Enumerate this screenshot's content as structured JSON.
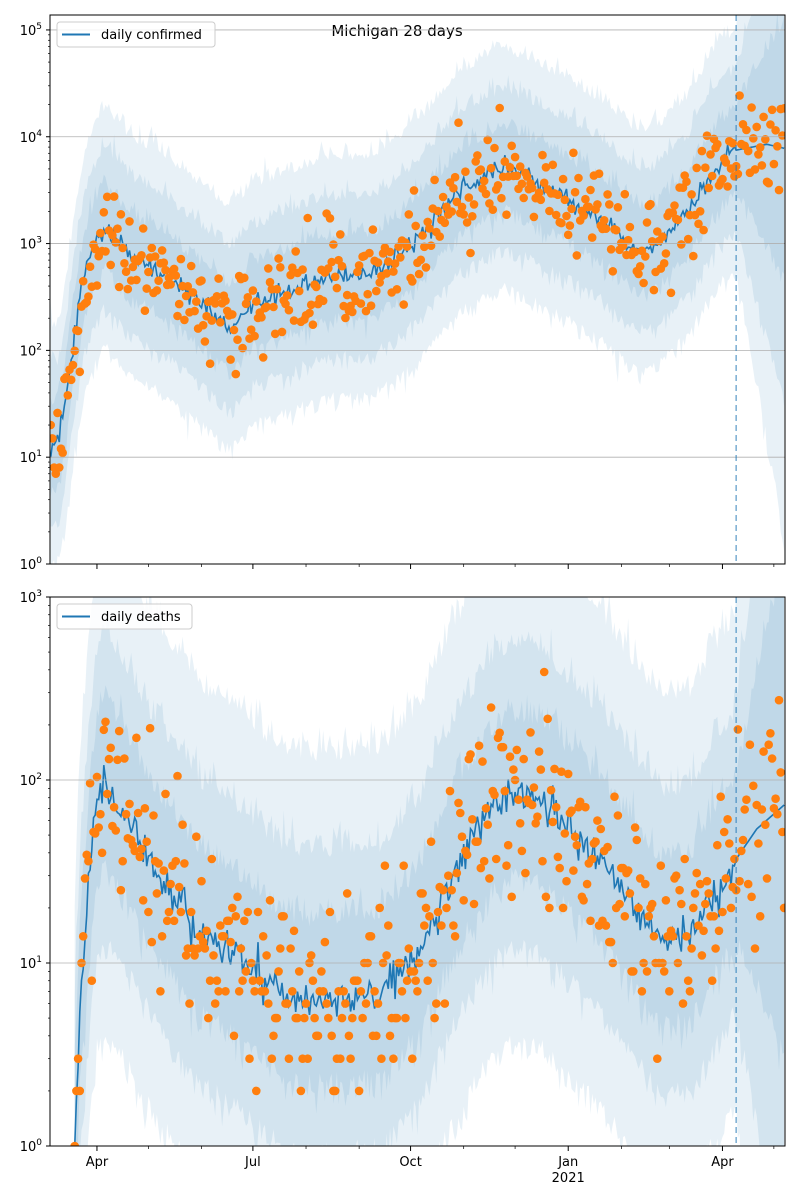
{
  "chart_data": [
    {
      "type": "line",
      "title": "Michigan 28 days",
      "scale": "log",
      "ylim": [
        1,
        138000
      ],
      "xlim_days_from_2020_04_01": [
        -27.4,
        401.5
      ],
      "legend": {
        "label": "daily confirmed",
        "placement": "top-left"
      },
      "grid": "major y",
      "y_ticks": [
        {
          "base": "10",
          "exp": "0",
          "value": 1
        },
        {
          "base": "10",
          "exp": "1",
          "value": 10
        },
        {
          "base": "10",
          "exp": "2",
          "value": 100
        },
        {
          "base": "10",
          "exp": "3",
          "value": 1000
        },
        {
          "base": "10",
          "exp": "4",
          "value": 10000
        },
        {
          "base": "10",
          "exp": "5",
          "value": 100000
        }
      ],
      "forecast_start_day": 373,
      "median": [
        [
          -27,
          12
        ],
        [
          -22,
          15
        ],
        [
          -18,
          35
        ],
        [
          -13,
          150
        ],
        [
          -7,
          550
        ],
        [
          0,
          1100
        ],
        [
          5,
          1500
        ],
        [
          19,
          780
        ],
        [
          37,
          550
        ],
        [
          60,
          280
        ],
        [
          78,
          160
        ],
        [
          89,
          260
        ],
        [
          111,
          360
        ],
        [
          136,
          500
        ],
        [
          159,
          500
        ],
        [
          177,
          750
        ],
        [
          195,
          1500
        ],
        [
          212,
          3200
        ],
        [
          230,
          4500
        ],
        [
          238,
          5200
        ],
        [
          253,
          4000
        ],
        [
          270,
          2900
        ],
        [
          294,
          1700
        ],
        [
          315,
          880
        ],
        [
          327,
          970
        ],
        [
          345,
          1900
        ],
        [
          362,
          5500
        ],
        [
          373,
          7500
        ],
        [
          391,
          8500
        ],
        [
          401,
          7800
        ]
      ],
      "band_factors": [
        2.2,
        5,
        12
      ],
      "observed_noise_log10": 0.22,
      "observed_end_day": 401
    },
    {
      "type": "line",
      "title": "",
      "scale": "log",
      "ylim": [
        1,
        1000
      ],
      "xlim_days_from_2020_04_01": [
        -27.4,
        401.5
      ],
      "legend": {
        "label": "daily deaths",
        "placement": "top-left"
      },
      "grid": "major y",
      "y_ticks": [
        {
          "base": "10",
          "exp": "0",
          "value": 1
        },
        {
          "base": "10",
          "exp": "1",
          "value": 10
        },
        {
          "base": "10",
          "exp": "2",
          "value": 100
        },
        {
          "base": "10",
          "exp": "3",
          "value": 1000
        }
      ],
      "forecast_start_day": 373,
      "median": [
        [
          -13,
          1
        ],
        [
          -10,
          6
        ],
        [
          -4,
          32
        ],
        [
          0,
          78
        ],
        [
          5,
          95
        ],
        [
          19,
          60
        ],
        [
          31,
          36
        ],
        [
          43,
          25
        ],
        [
          60,
          15
        ],
        [
          78,
          12
        ],
        [
          95,
          8.6
        ],
        [
          113,
          6.3
        ],
        [
          136,
          6.3
        ],
        [
          165,
          6.7
        ],
        [
          177,
          9
        ],
        [
          189,
          12
        ],
        [
          200,
          22
        ],
        [
          212,
          37
        ],
        [
          230,
          69
        ],
        [
          241,
          83
        ],
        [
          259,
          78
        ],
        [
          276,
          54
        ],
        [
          294,
          37
        ],
        [
          311,
          22
        ],
        [
          329,
          13.4
        ],
        [
          346,
          14
        ],
        [
          361,
          25
        ],
        [
          373,
          37
        ],
        [
          385,
          54
        ],
        [
          401,
          73
        ]
      ],
      "band_factors": [
        2.5,
        6,
        20
      ],
      "observed_noise_log10": 0.3,
      "observed_end_day": 401
    }
  ],
  "x_axis": {
    "major_ticks": [
      {
        "day": 0,
        "label": "Apr"
      },
      {
        "day": 91,
        "label": "Jul"
      },
      {
        "day": 183,
        "label": "Oct"
      },
      {
        "day": 275,
        "label": "Jan",
        "sublabel": "2021"
      },
      {
        "day": 365,
        "label": "Apr"
      }
    ],
    "minor_tick_days": [
      -31,
      30,
      61,
      122,
      153,
      214,
      244,
      306,
      334,
      395
    ]
  },
  "colors": {
    "line": "#1f77b4",
    "points": "#ff7f0e",
    "band": "#1f77b4",
    "grid": "#b0b0b0"
  }
}
